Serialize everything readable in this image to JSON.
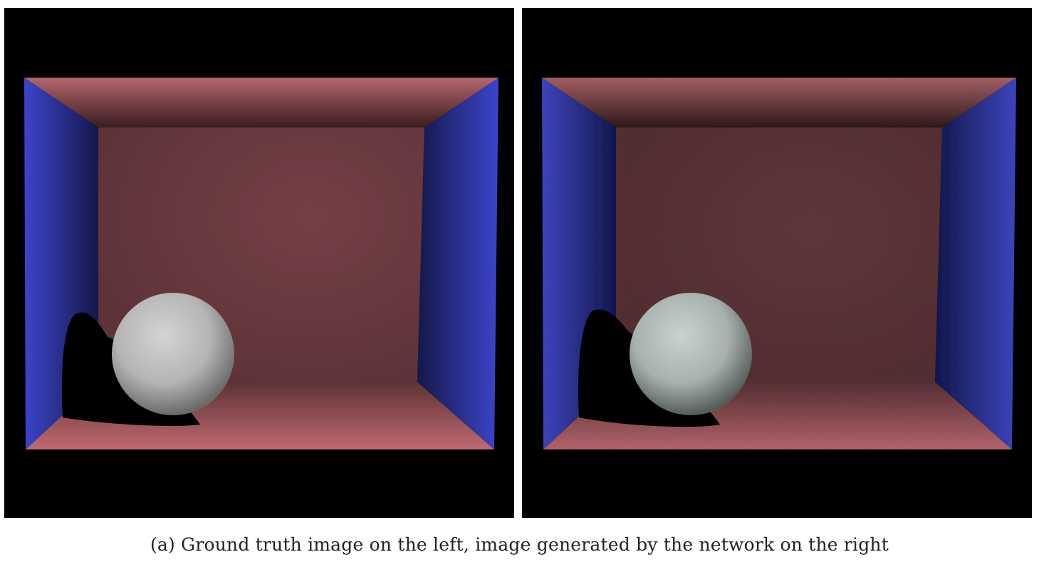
{
  "figure": {
    "caption": "(a) Ground truth image on the left, image generated by the network on the right",
    "panels": [
      {
        "id": "ground-truth",
        "noisy": false
      },
      {
        "id": "generated",
        "noisy": true
      }
    ]
  },
  "colors": {
    "background": "#000000",
    "side_walls": "#3a40c0",
    "back_wall": "#6b3a40",
    "floor_ceiling": "#c06a70",
    "sphere": "#d8d8d8"
  }
}
